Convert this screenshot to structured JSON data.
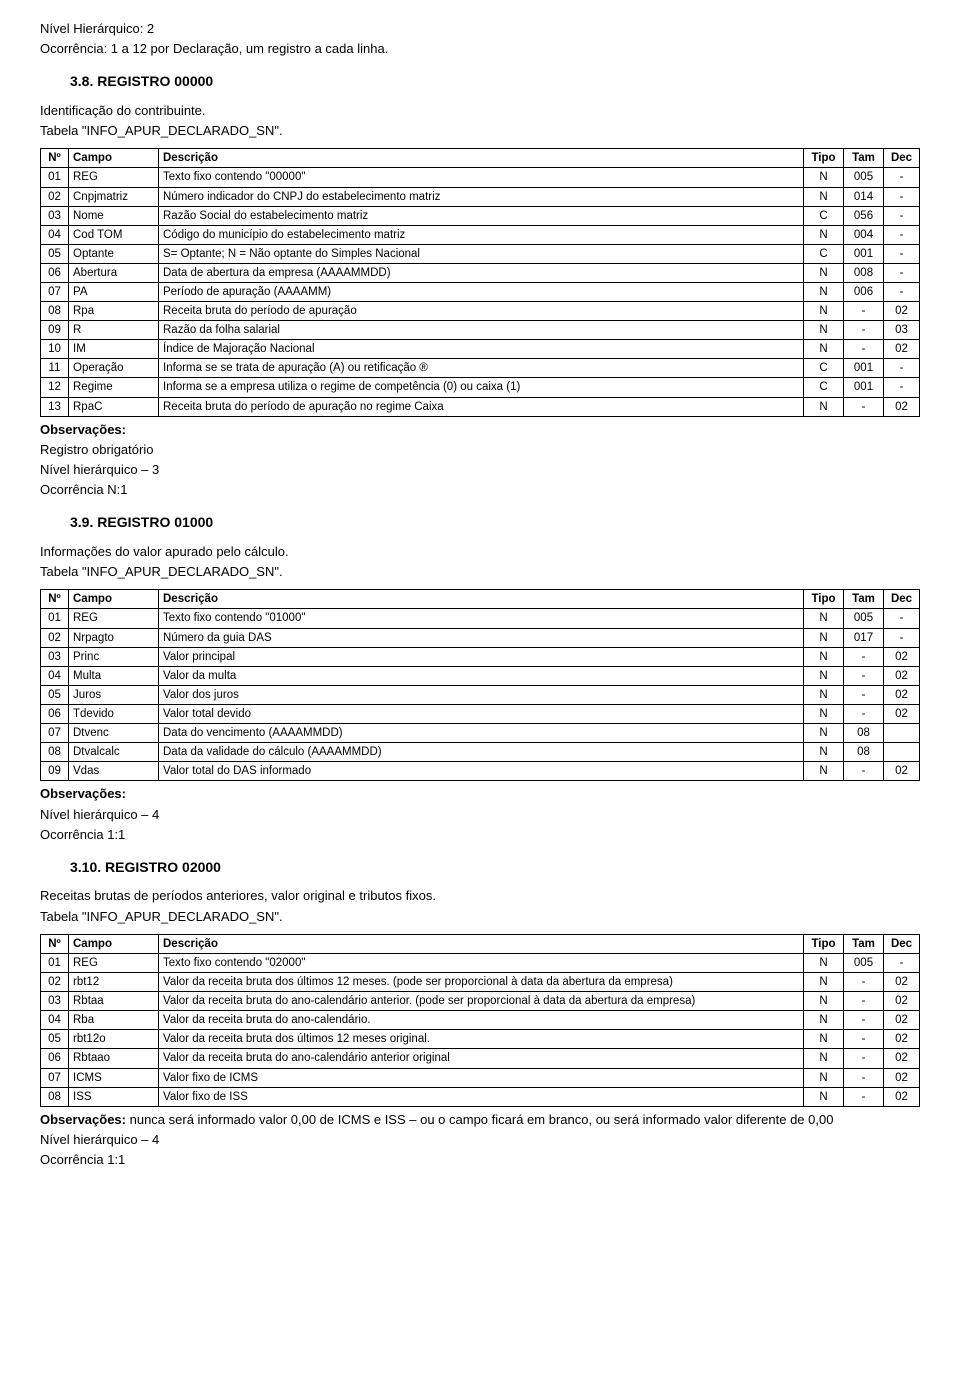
{
  "header": {
    "nivel": "Nível Hierárquico: 2",
    "ocorrencia": "Ocorrência: 1 a 12 por Declaração, um registro a cada linha."
  },
  "sec38": {
    "title": "3.8. REGISTRO 00000",
    "line1": "Identificação do contribuinte.",
    "line2": "Tabela \"INFO_APUR_DECLARADO_SN\".",
    "obs_label": "Observações:",
    "obs1": "Registro obrigatório",
    "obs2": "Nível hierárquico – 3",
    "obs3": "Ocorrência N:1"
  },
  "sec39": {
    "title": "3.9. REGISTRO 01000",
    "line1": "Informações do valor apurado pelo cálculo.",
    "line2": "Tabela \"INFO_APUR_DECLARADO_SN\".",
    "obs_label": "Observações:",
    "obs1": "Nível hierárquico – 4",
    "obs2": "Ocorrência 1:1"
  },
  "sec310": {
    "title": "3.10. REGISTRO 02000",
    "line1": "Receitas brutas de períodos anteriores, valor original e tributos fixos.",
    "line2": "Tabela \"INFO_APUR_DECLARADO_SN\".",
    "obs_label": "Observações:",
    "obs_text": " nunca será informado valor 0,00 de ICMS e ISS – ou o campo ficará em branco, ou será informado valor diferente de 0,00",
    "obs1": "Nível hierárquico – 4",
    "obs2": "Ocorrência 1:1"
  },
  "table_headers": {
    "no": "Nº",
    "campo": "Campo",
    "desc": "Descrição",
    "tipo": "Tipo",
    "tam": "Tam",
    "dec": "Dec"
  },
  "table38": {
    "rows": [
      {
        "no": "01",
        "campo": "REG",
        "desc": "Texto fixo contendo \"00000\"",
        "tipo": "N",
        "tam": "005",
        "dec": "-"
      },
      {
        "no": "02",
        "campo": "Cnpjmatriz",
        "desc": "Número indicador do CNPJ do estabelecimento matriz",
        "tipo": "N",
        "tam": "014",
        "dec": "-"
      },
      {
        "no": "03",
        "campo": "Nome",
        "desc": "Razão Social do estabelecimento matriz",
        "tipo": "C",
        "tam": "056",
        "dec": "-"
      },
      {
        "no": "04",
        "campo": "Cod TOM",
        "desc": "Código do município do estabelecimento matriz",
        "tipo": "N",
        "tam": "004",
        "dec": "-"
      },
      {
        "no": "05",
        "campo": "Optante",
        "desc": "S= Optante; N = Não optante do Simples Nacional",
        "tipo": "C",
        "tam": "001",
        "dec": "-"
      },
      {
        "no": "06",
        "campo": "Abertura",
        "desc": "Data de abertura da empresa (AAAAMMDD)",
        "tipo": "N",
        "tam": "008",
        "dec": "-"
      },
      {
        "no": "07",
        "campo": "PA",
        "desc": "Período de apuração (AAAAMM)",
        "tipo": "N",
        "tam": "006",
        "dec": "-"
      },
      {
        "no": "08",
        "campo": "Rpa",
        "desc": "Receita bruta do período de apuração",
        "tipo": "N",
        "tam": "-",
        "dec": "02"
      },
      {
        "no": "09",
        "campo": "R",
        "desc": "Razão da folha salarial",
        "tipo": "N",
        "tam": "-",
        "dec": "03"
      },
      {
        "no": "10",
        "campo": "IM",
        "desc": "Índice de Majoração Nacional",
        "tipo": "N",
        "tam": "-",
        "dec": "02"
      },
      {
        "no": "11",
        "campo": "Operação",
        "desc": "Informa se se trata de apuração (A) ou retificação ®",
        "tipo": "C",
        "tam": "001",
        "dec": "-"
      },
      {
        "no": "12",
        "campo": "Regime",
        "desc": "Informa se a empresa utiliza o regime de competência (0) ou caixa (1)",
        "tipo": "C",
        "tam": "001",
        "dec": "-"
      },
      {
        "no": "13",
        "campo": "RpaC",
        "desc": "Receita bruta do período de apuração no regime Caixa",
        "tipo": "N",
        "tam": "-",
        "dec": "02"
      }
    ]
  },
  "table39": {
    "rows": [
      {
        "no": "01",
        "campo": "REG",
        "desc": "Texto fixo contendo \"01000\"",
        "tipo": "N",
        "tam": "005",
        "dec": "-"
      },
      {
        "no": "02",
        "campo": "Nrpagto",
        "desc": "Número da guia DAS",
        "tipo": "N",
        "tam": "017",
        "dec": "-"
      },
      {
        "no": "03",
        "campo": "Princ",
        "desc": "Valor principal",
        "tipo": "N",
        "tam": "-",
        "dec": "02"
      },
      {
        "no": "04",
        "campo": "Multa",
        "desc": "Valor da multa",
        "tipo": "N",
        "tam": "-",
        "dec": "02"
      },
      {
        "no": "05",
        "campo": "Juros",
        "desc": "Valor dos juros",
        "tipo": "N",
        "tam": "-",
        "dec": "02"
      },
      {
        "no": "06",
        "campo": "Tdevido",
        "desc": "Valor total devido",
        "tipo": "N",
        "tam": "-",
        "dec": "02"
      },
      {
        "no": "07",
        "campo": "Dtvenc",
        "desc": "Data do vencimento (AAAAMMDD)",
        "tipo": "N",
        "tam": "08",
        "dec": ""
      },
      {
        "no": "08",
        "campo": "Dtvalcalc",
        "desc": "Data da validade do cálculo (AAAAMMDD)",
        "tipo": "N",
        "tam": "08",
        "dec": ""
      },
      {
        "no": "09",
        "campo": "Vdas",
        "desc": "Valor total do DAS informado",
        "tipo": "N",
        "tam": "-",
        "dec": "02"
      }
    ]
  },
  "table310": {
    "rows": [
      {
        "no": "01",
        "campo": "REG",
        "desc": "Texto fixo contendo \"02000\"",
        "tipo": "N",
        "tam": "005",
        "dec": "-"
      },
      {
        "no": "02",
        "campo": "rbt12",
        "desc": "Valor da receita bruta dos últimos 12 meses. (pode ser proporcional à data da abertura da empresa)",
        "tipo": "N",
        "tam": "-",
        "dec": "02"
      },
      {
        "no": "03",
        "campo": "Rbtaa",
        "desc": "Valor da receita bruta do ano-calendário anterior. (pode ser proporcional à data da abertura da empresa)",
        "tipo": "N",
        "tam": "-",
        "dec": "02"
      },
      {
        "no": "04",
        "campo": "Rba",
        "desc": "Valor da receita bruta do ano-calendário.",
        "tipo": "N",
        "tam": "-",
        "dec": "02"
      },
      {
        "no": "05",
        "campo": "rbt12o",
        "desc": "Valor da receita bruta dos últimos 12 meses original.",
        "tipo": "N",
        "tam": "-",
        "dec": "02"
      },
      {
        "no": "06",
        "campo": "Rbtaao",
        "desc": "Valor da receita bruta do ano-calendário anterior original",
        "tipo": "N",
        "tam": "-",
        "dec": "02"
      },
      {
        "no": "07",
        "campo": "ICMS",
        "desc": "Valor fixo de ICMS",
        "tipo": "N",
        "tam": "-",
        "dec": "02"
      },
      {
        "no": "08",
        "campo": "ISS",
        "desc": "Valor fixo de ISS",
        "tipo": "N",
        "tam": "-",
        "dec": "02"
      }
    ]
  }
}
